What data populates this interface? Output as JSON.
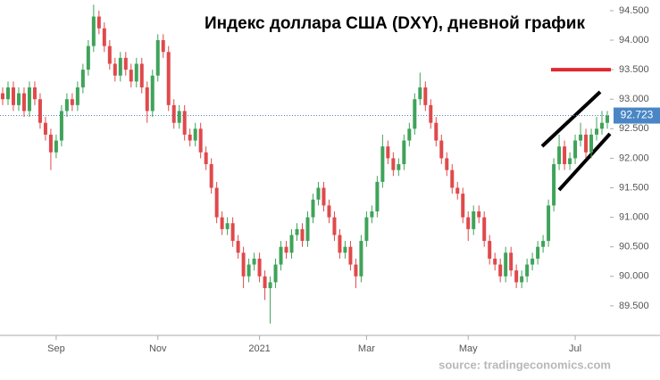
{
  "chart_data": {
    "type": "candlestick",
    "title": "Индекс доллара США (DXY), дневной график",
    "source": "source: tradingeconomics.com",
    "up_color": "#3fa35a",
    "down_color": "#e0494b",
    "ylim": [
      89.0,
      94.68
    ],
    "yticks": [
      {
        "value": 89.5,
        "label": "89.500"
      },
      {
        "value": 90.0,
        "label": "90.000"
      },
      {
        "value": 90.5,
        "label": "90.500"
      },
      {
        "value": 91.0,
        "label": "91.000"
      },
      {
        "value": 91.5,
        "label": "91.500"
      },
      {
        "value": 92.0,
        "label": "92.000"
      },
      {
        "value": 92.5,
        "label": "92.500"
      },
      {
        "value": 93.0,
        "label": "93.000"
      },
      {
        "value": 93.5,
        "label": "93.500"
      },
      {
        "value": 94.0,
        "label": "94.000"
      },
      {
        "value": 94.5,
        "label": "94.500"
      }
    ],
    "last_price": 92.723,
    "level_line": {
      "value": 93.5,
      "color": "#e0282e"
    },
    "categories": [
      null,
      null,
      null,
      null,
      null,
      null,
      null,
      null,
      null,
      null,
      "Sep",
      null,
      null,
      null,
      null,
      null,
      null,
      null,
      null,
      null,
      null,
      null,
      null,
      null,
      null,
      null,
      null,
      null,
      null,
      "Nov",
      null,
      null,
      null,
      null,
      null,
      null,
      null,
      null,
      null,
      null,
      null,
      null,
      null,
      null,
      null,
      null,
      null,
      null,
      "2021",
      null,
      null,
      null,
      null,
      null,
      null,
      null,
      null,
      null,
      null,
      null,
      null,
      null,
      null,
      null,
      null,
      null,
      null,
      null,
      "Mar",
      null,
      null,
      null,
      null,
      null,
      null,
      null,
      null,
      null,
      null,
      null,
      null,
      null,
      null,
      null,
      null,
      null,
      null,
      "May",
      null,
      null,
      null,
      null,
      null,
      null,
      null,
      null,
      null,
      null,
      null,
      null,
      null,
      null,
      null,
      null,
      null,
      null,
      null,
      "Jul",
      null,
      null,
      null,
      null,
      null,
      null
    ],
    "series": [
      {
        "open": [
          93.1,
          93.0,
          93.2,
          92.9,
          93.1,
          92.8,
          93.2,
          93.0,
          92.6,
          92.4,
          92.1,
          92.3,
          92.8,
          93.0,
          92.9,
          93.2,
          93.5,
          93.9,
          94.4,
          94.2,
          93.9,
          93.6,
          93.4,
          93.7,
          93.5,
          93.3,
          93.6,
          93.2,
          92.8,
          93.4,
          94.0,
          93.8,
          92.9,
          92.6,
          92.8,
          92.4,
          92.3,
          92.5,
          92.1,
          91.9,
          91.5,
          91.0,
          90.8,
          90.9,
          90.6,
          90.4,
          90.0,
          90.2,
          90.3,
          90.0,
          89.8,
          89.9,
          90.2,
          90.5,
          90.4,
          90.7,
          90.8,
          90.6,
          91.0,
          91.3,
          91.5,
          91.2,
          91.0,
          90.7,
          90.4,
          90.5,
          90.2,
          90.0,
          90.6,
          91.0,
          91.1,
          91.6,
          92.2,
          92.0,
          91.8,
          91.9,
          92.3,
          92.5,
          93.0,
          93.2,
          92.9,
          92.6,
          92.3,
          92.0,
          91.8,
          91.5,
          91.4,
          91.0,
          90.8,
          91.1,
          91.0,
          90.6,
          90.3,
          90.2,
          90.0,
          90.4,
          90.1,
          89.9,
          90.0,
          90.2,
          90.3,
          90.5,
          90.6,
          91.2,
          91.9,
          92.2,
          91.9,
          92.0,
          92.3,
          92.4,
          92.1,
          92.4,
          92.5,
          92.6
        ],
        "high": [
          93.2,
          93.3,
          93.3,
          93.2,
          93.2,
          93.3,
          93.3,
          93.1,
          92.7,
          92.5,
          92.4,
          92.9,
          93.1,
          93.1,
          93.3,
          93.6,
          94.0,
          94.6,
          94.5,
          94.3,
          94.0,
          93.7,
          93.8,
          93.8,
          93.6,
          93.7,
          93.7,
          93.3,
          93.5,
          94.1,
          94.1,
          93.9,
          93.0,
          92.9,
          92.9,
          92.5,
          92.6,
          92.6,
          92.2,
          92.0,
          91.6,
          91.1,
          91.0,
          91.0,
          90.7,
          90.5,
          90.3,
          90.4,
          90.4,
          90.1,
          90.0,
          90.3,
          90.6,
          90.6,
          90.8,
          90.9,
          90.9,
          91.1,
          91.4,
          91.6,
          91.6,
          91.3,
          91.1,
          90.8,
          90.6,
          90.6,
          90.3,
          90.7,
          91.1,
          91.2,
          91.7,
          92.4,
          92.3,
          92.1,
          92.0,
          92.4,
          92.6,
          93.1,
          93.45,
          93.3,
          93.0,
          92.7,
          92.4,
          92.1,
          91.9,
          91.6,
          91.5,
          91.1,
          91.2,
          91.2,
          91.1,
          90.7,
          90.4,
          90.3,
          90.5,
          90.5,
          90.2,
          90.1,
          90.3,
          90.4,
          90.6,
          90.7,
          91.3,
          92.0,
          92.4,
          92.3,
          92.1,
          92.4,
          92.6,
          92.5,
          92.5,
          92.7,
          92.8,
          92.8
        ],
        "low": [
          92.9,
          92.9,
          92.8,
          92.8,
          92.7,
          92.7,
          92.9,
          92.5,
          92.3,
          91.8,
          92.0,
          92.2,
          92.7,
          92.8,
          92.8,
          93.1,
          93.4,
          93.8,
          94.1,
          93.8,
          93.5,
          93.3,
          93.3,
          93.4,
          93.2,
          93.2,
          93.1,
          92.6,
          92.7,
          93.3,
          93.7,
          92.8,
          92.5,
          92.5,
          92.3,
          92.2,
          92.2,
          92.0,
          91.8,
          91.4,
          90.9,
          90.7,
          90.7,
          90.5,
          90.3,
          89.8,
          89.9,
          90.1,
          89.9,
          89.6,
          89.2,
          89.8,
          90.1,
          90.3,
          90.3,
          90.6,
          90.5,
          90.5,
          90.9,
          91.2,
          91.1,
          90.9,
          90.6,
          90.3,
          90.3,
          90.1,
          89.8,
          89.9,
          90.5,
          90.9,
          91.0,
          91.5,
          91.9,
          91.7,
          91.7,
          91.8,
          92.2,
          92.4,
          92.9,
          92.8,
          92.5,
          92.2,
          91.9,
          91.7,
          91.4,
          91.3,
          90.9,
          90.6,
          90.7,
          90.9,
          90.5,
          90.2,
          90.1,
          89.9,
          89.9,
          90.0,
          89.8,
          89.8,
          89.9,
          90.1,
          90.2,
          90.4,
          90.5,
          91.1,
          91.8,
          91.8,
          91.8,
          91.9,
          92.2,
          92.0,
          92.0,
          92.3,
          92.4,
          92.5
        ],
        "close": [
          93.0,
          93.2,
          92.9,
          93.1,
          92.8,
          93.2,
          93.0,
          92.6,
          92.4,
          92.1,
          92.3,
          92.8,
          93.0,
          92.9,
          93.2,
          93.5,
          93.9,
          94.4,
          94.2,
          93.9,
          93.6,
          93.4,
          93.7,
          93.5,
          93.3,
          93.6,
          93.2,
          92.8,
          93.4,
          94.0,
          93.8,
          92.9,
          92.6,
          92.8,
          92.4,
          92.3,
          92.5,
          92.1,
          91.9,
          91.5,
          91.0,
          90.8,
          90.9,
          90.6,
          90.4,
          90.0,
          90.2,
          90.3,
          90.0,
          89.8,
          89.9,
          90.2,
          90.5,
          90.4,
          90.7,
          90.8,
          90.6,
          91.0,
          91.3,
          91.5,
          91.2,
          91.0,
          90.7,
          90.4,
          90.5,
          90.2,
          90.0,
          90.6,
          91.0,
          91.1,
          91.6,
          92.2,
          92.0,
          91.8,
          91.9,
          92.3,
          92.5,
          93.0,
          93.2,
          92.9,
          92.6,
          92.3,
          92.0,
          91.8,
          91.5,
          91.4,
          91.0,
          90.8,
          91.1,
          91.0,
          90.6,
          90.3,
          90.2,
          90.0,
          90.4,
          90.1,
          89.9,
          90.0,
          90.2,
          90.3,
          90.5,
          90.6,
          91.2,
          91.9,
          92.2,
          91.9,
          92.0,
          92.3,
          92.4,
          92.1,
          92.4,
          92.5,
          92.6,
          92.723
        ]
      }
    ]
  }
}
